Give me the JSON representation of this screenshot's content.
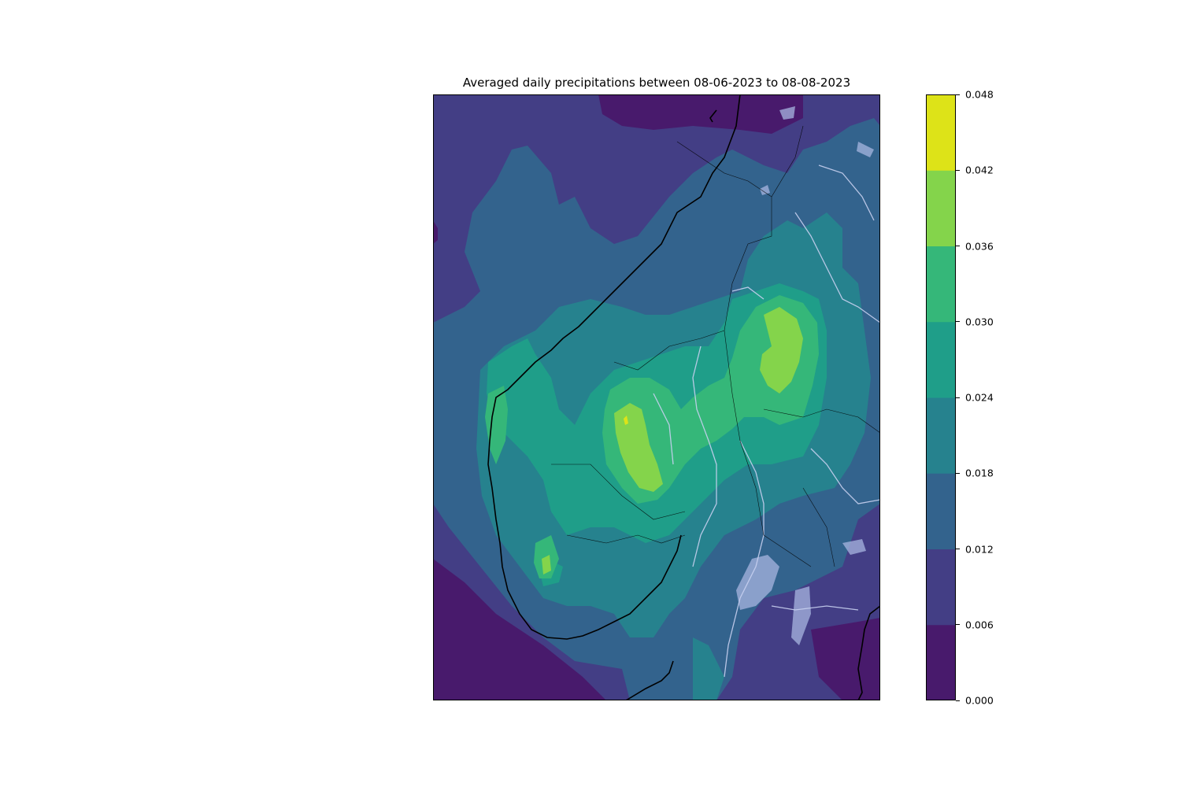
{
  "title": "Averaged daily precipitations between 08-06-2023 to 08-08-2023",
  "colorbar": {
    "levels": [
      "0.000",
      "0.006",
      "0.012",
      "0.018",
      "0.024",
      "0.030",
      "0.036",
      "0.042",
      "0.048"
    ],
    "colors": [
      "#481a6c",
      "#433e85",
      "#33638d",
      "#26828e",
      "#1f9e89",
      "#35b779",
      "#84d44b",
      "#dde318"
    ]
  },
  "map": {
    "ocean_background": "#433e85",
    "coastline_color": "#000000",
    "lakes_rivers_color": "#a7b5e0"
  }
}
